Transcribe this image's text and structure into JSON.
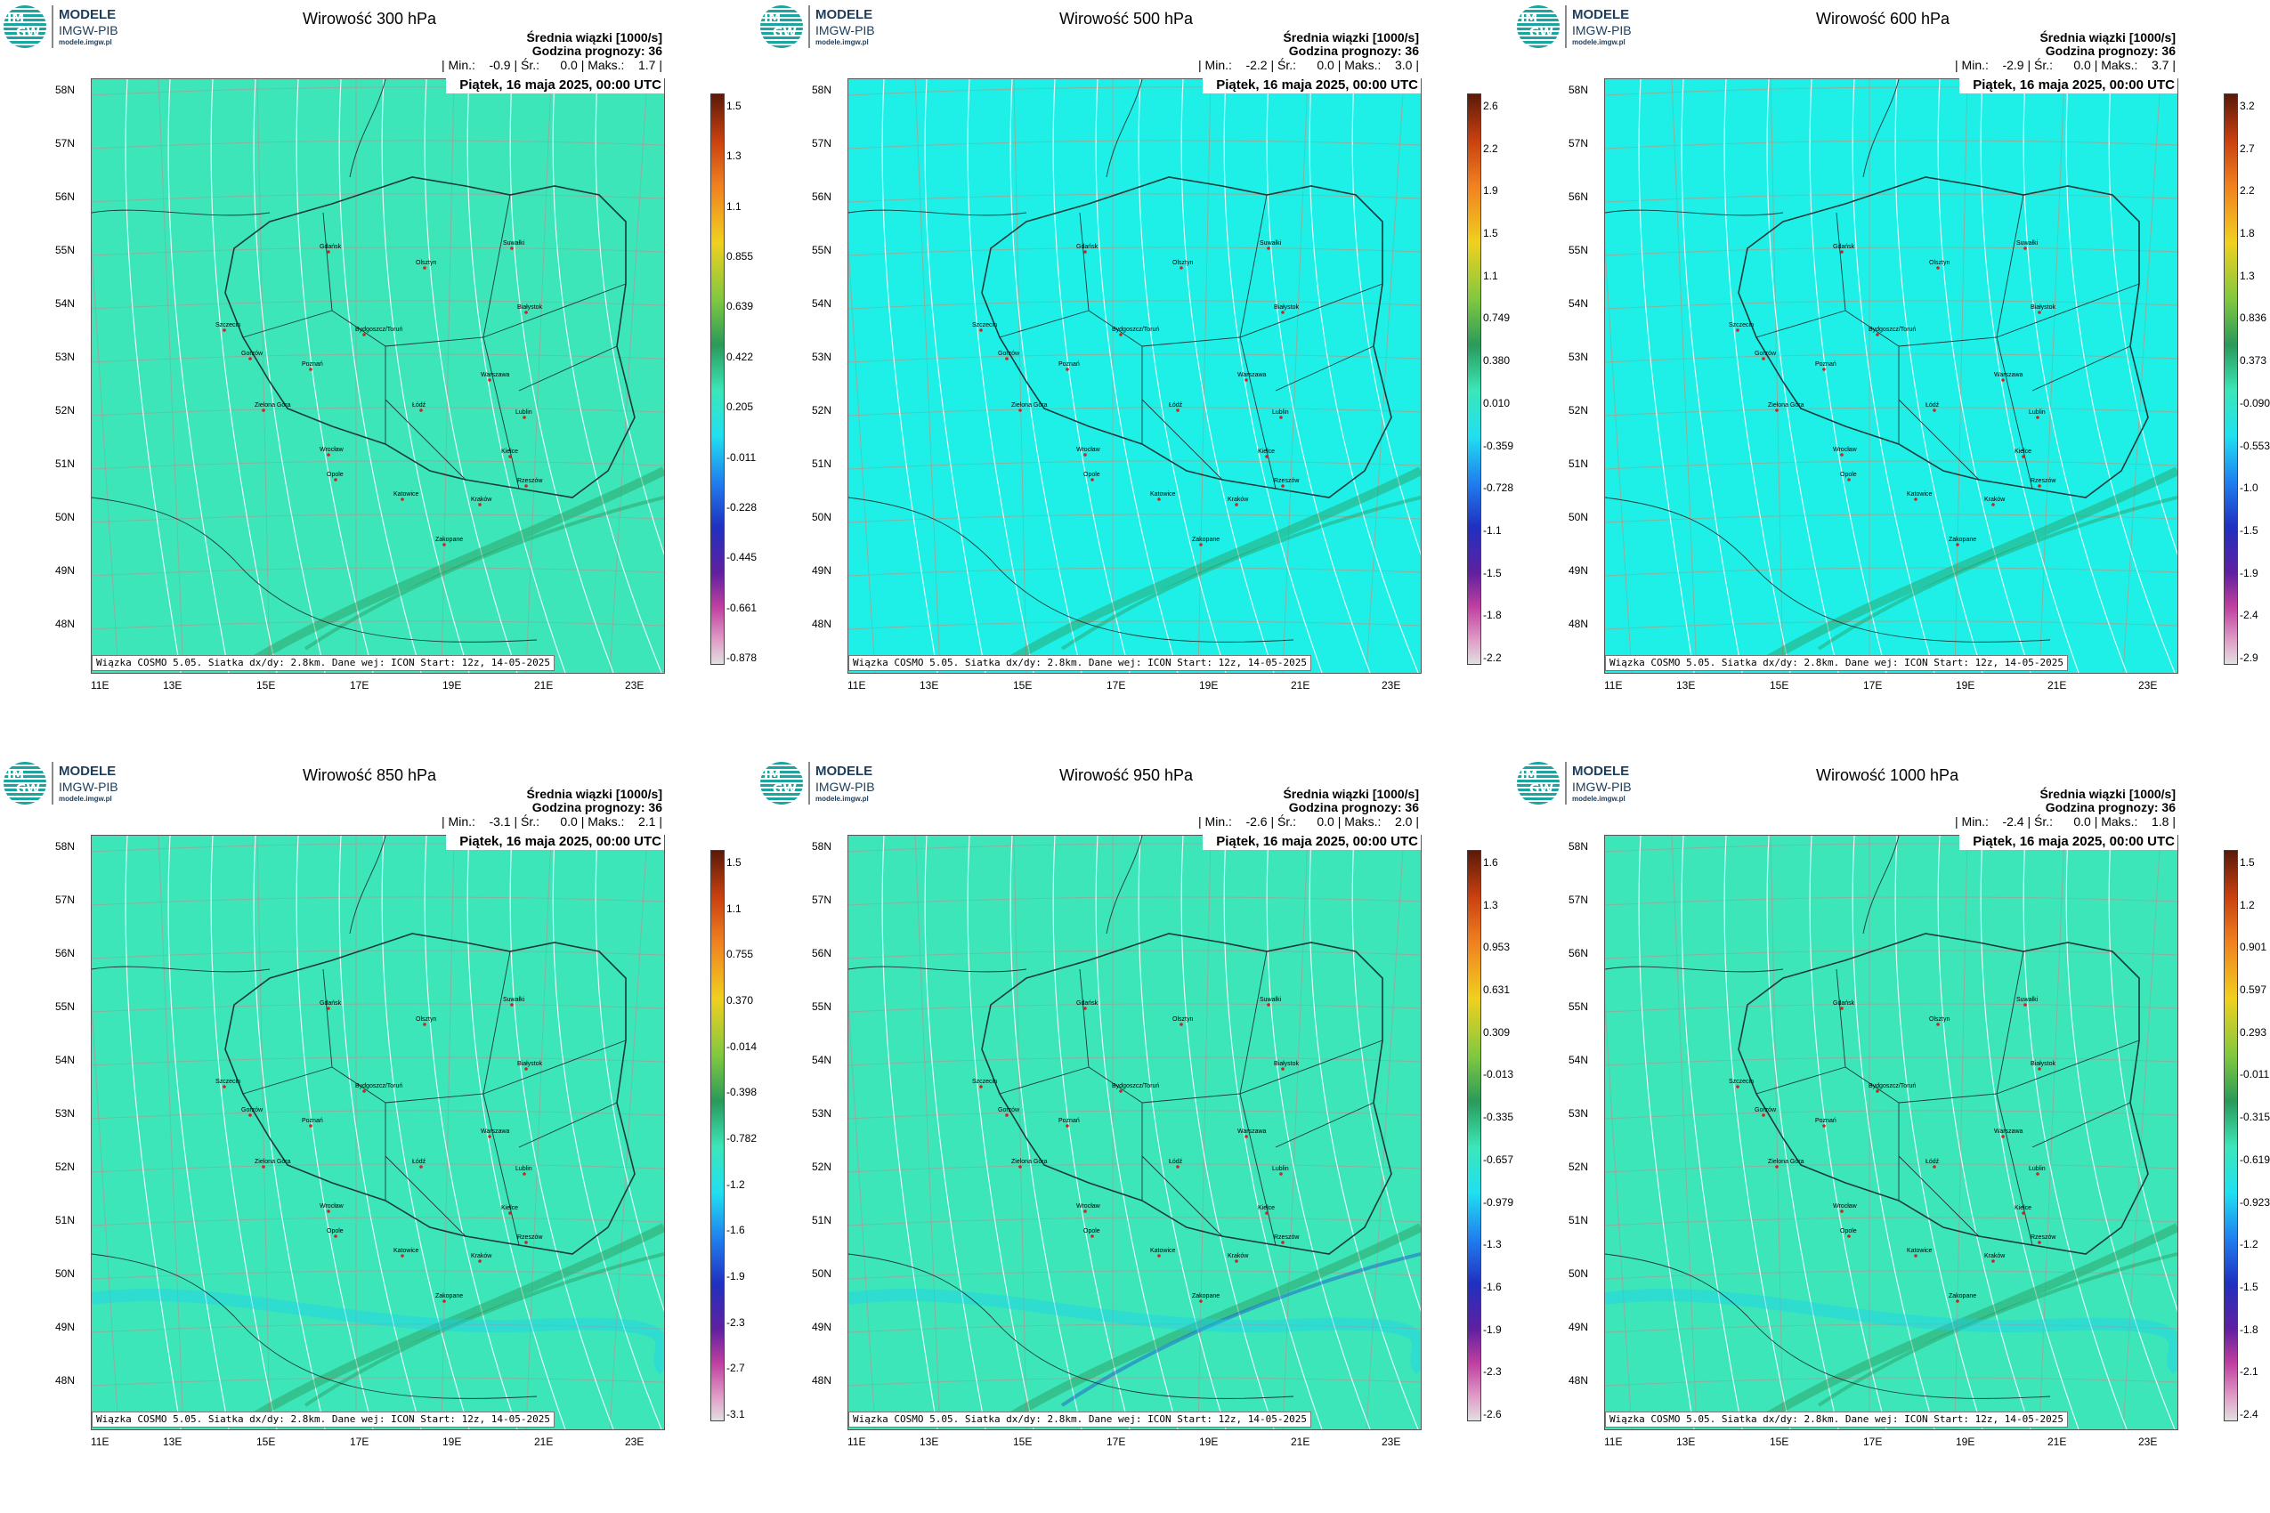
{
  "logo": {
    "title": "MODELE",
    "subtitle": "IMGW-PIB",
    "url": "modele.imgw.pl",
    "mark_top": "IM",
    "mark_bottom": "GW"
  },
  "common": {
    "stat_title": "Średnia wiązki [1000/s]",
    "stat_hour": "Godzina prognozy: 36",
    "date": "Piątek, 16 maja 2025, 00:00 UTC",
    "footer": "Wiązka COSMO 5.05. Siatka dx/dy: 2.8km. Dane wej: ICON Start: 12z, 14-05-2025",
    "lat_labels": [
      "58N",
      "57N",
      "56N",
      "55N",
      "54N",
      "53N",
      "52N",
      "51N",
      "50N",
      "49N",
      "48N"
    ],
    "lon_labels": [
      "11E",
      "13E",
      "15E",
      "17E",
      "19E",
      "21E",
      "23E"
    ]
  },
  "panels": [
    {
      "title": "Wirowość 300 hPa",
      "min": "-0.9",
      "mean": "0.0",
      "max": "1.7",
      "bg": "#3ce6b9",
      "ticks": [
        "1.5",
        "1.3",
        "1.1",
        "0.855",
        "0.639",
        "0.422",
        "0.205",
        "-0.011",
        "-0.228",
        "-0.445",
        "-0.661",
        "-0.878"
      ]
    },
    {
      "title": "Wirowość 500 hPa",
      "min": "-2.2",
      "mean": "0.0",
      "max": "3.0",
      "bg": "#1ef0e8",
      "ticks": [
        "2.6",
        "2.2",
        "1.9",
        "1.5",
        "1.1",
        "0.749",
        "0.380",
        "0.010",
        "-0.359",
        "-0.728",
        "-1.1",
        "-1.5",
        "-1.8",
        "-2.2"
      ]
    },
    {
      "title": "Wirowość 600 hPa",
      "min": "-2.9",
      "mean": "0.0",
      "max": "3.7",
      "bg": "#1ef0e8",
      "ticks": [
        "3.2",
        "2.7",
        "2.2",
        "1.8",
        "1.3",
        "0.836",
        "0.373",
        "-0.090",
        "-0.553",
        "-1.0",
        "-1.5",
        "-1.9",
        "-2.4",
        "-2.9"
      ]
    },
    {
      "title": "Wirowość 850 hPa",
      "min": "-3.1",
      "mean": "0.0",
      "max": "2.1",
      "bg": "#3ce6b9",
      "ticks": [
        "1.5",
        "1.1",
        "0.755",
        "0.370",
        "-0.014",
        "-0.398",
        "-0.782",
        "-1.2",
        "-1.6",
        "-1.9",
        "-2.3",
        "-2.7",
        "-3.1"
      ]
    },
    {
      "title": "Wirowość 950 hPa",
      "min": "-2.6",
      "mean": "0.0",
      "max": "2.0",
      "bg": "#3ce6b9",
      "ticks": [
        "1.6",
        "1.3",
        "0.953",
        "0.631",
        "0.309",
        "-0.013",
        "-0.335",
        "-0.657",
        "-0.979",
        "-1.3",
        "-1.6",
        "-1.9",
        "-2.3",
        "-2.6"
      ]
    },
    {
      "title": "Wirowość 1000 hPa",
      "min": "-2.4",
      "mean": "0.0",
      "max": "1.8",
      "bg": "#3ce6b9",
      "ticks": [
        "1.5",
        "1.2",
        "0.901",
        "0.597",
        "0.293",
        "-0.011",
        "-0.315",
        "-0.619",
        "-0.923",
        "-1.2",
        "-1.5",
        "-1.8",
        "-2.1",
        "-2.4"
      ]
    }
  ],
  "cities": [
    "Gdańsk",
    "Olsztyn",
    "Suwałki",
    "Szczecin",
    "Bydgoszcz/Toruń",
    "Białystok",
    "Gorzów",
    "Poznań",
    "Warszawa",
    "Zielona Góra",
    "Łódź",
    "Lublin",
    "Wrocław",
    "Kielce",
    "Opole",
    "Rzeszów",
    "Katowice",
    "Kraków",
    "Zakopane"
  ],
  "colors": {
    "colorbar_top": "#5a1a0a",
    "colorbar_bottom": "#e0e0e0"
  }
}
